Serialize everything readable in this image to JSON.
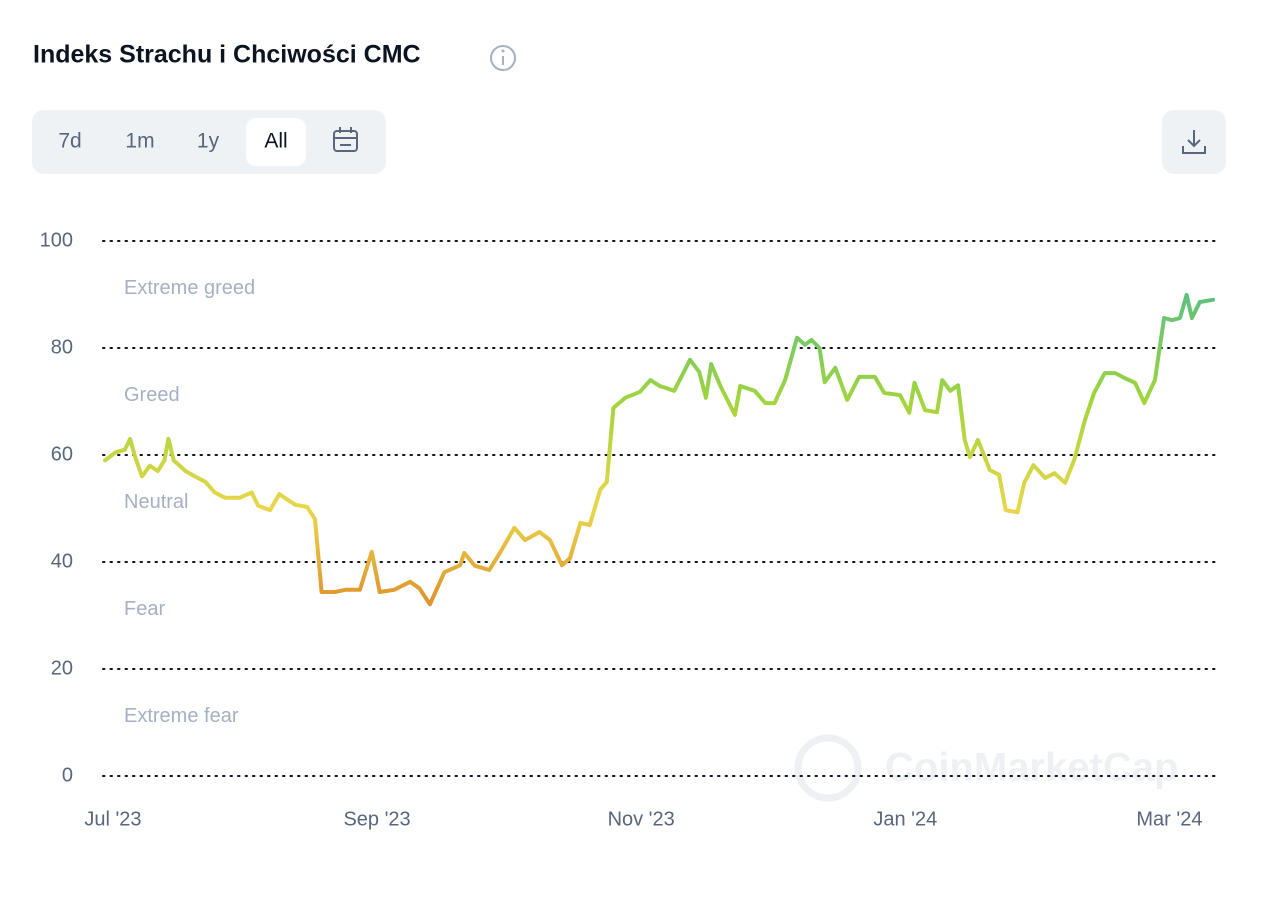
{
  "header": {
    "title": "Indeks Strachu i Chciwości CMC",
    "buttons": [
      "7d",
      "1m",
      "1y",
      "All"
    ],
    "active_button": 3
  },
  "watermark": "CoinMarketCap",
  "chart_data": {
    "type": "line",
    "x": [
      -0.06,
      0.02,
      0.09,
      0.13,
      0.17,
      0.22,
      0.28,
      0.34,
      0.39,
      0.42,
      0.46,
      0.55,
      0.62,
      0.7,
      0.77,
      0.85,
      0.96,
      1.05,
      1.1,
      1.19,
      1.26,
      1.38,
      1.47,
      1.53,
      1.58,
      1.68,
      1.76,
      1.87,
      1.96,
      2.02,
      2.13,
      2.25,
      2.32,
      2.4,
      2.51,
      2.63,
      2.66,
      2.74,
      2.85,
      2.93,
      3.04,
      3.12,
      3.23,
      3.31,
      3.4,
      3.46,
      3.54,
      3.61,
      3.69,
      3.74,
      3.79,
      3.88,
      3.99,
      4.07,
      4.14,
      4.25,
      4.37,
      4.44,
      4.49,
      4.53,
      4.6,
      4.71,
      4.75,
      4.86,
      4.94,
      5.01,
      5.09,
      5.18,
      5.24,
      5.29,
      5.35,
      5.39,
      5.47,
      5.56,
      5.65,
      5.77,
      5.84,
      5.96,
      6.03,
      6.07,
      6.15,
      6.24,
      6.28,
      6.34,
      6.4,
      6.45,
      6.49,
      6.55,
      6.64,
      6.71,
      6.76,
      6.85,
      6.9,
      6.97,
      7.06,
      7.13,
      7.21,
      7.28,
      7.36,
      7.43,
      7.51,
      7.59,
      7.66,
      7.74,
      7.81,
      7.89,
      7.96,
      8.02,
      8.08,
      8.13,
      8.17,
      8.23,
      8.33
    ],
    "values": [
      59,
      60.5,
      61,
      63,
      59.5,
      56,
      58,
      57,
      59,
      63,
      59,
      57,
      56,
      55,
      53,
      52,
      52,
      53,
      50.5,
      49.7,
      52.7,
      50.7,
      50.3,
      48,
      34.4,
      34.4,
      34.8,
      34.8,
      41.9,
      34.4,
      34.8,
      36.3,
      35.1,
      32.1,
      38.1,
      39.4,
      41.7,
      39.3,
      38.5,
      41.7,
      46.4,
      44.1,
      45.6,
      44.1,
      39.4,
      40.7,
      47.3,
      46.9,
      53.5,
      55,
      68.8,
      70.7,
      71.8,
      74,
      72.9,
      72,
      77.8,
      75.5,
      70.7,
      77,
      72.9,
      67.5,
      72.9,
      72,
      69.7,
      69.7,
      74,
      81.9,
      80.6,
      81.5,
      80,
      73.6,
      76.3,
      70.3,
      74.6,
      74.6,
      71.6,
      71.2,
      67.9,
      73.5,
      68.4,
      68,
      74,
      72,
      73,
      62.8,
      59.6,
      62.8,
      57.2,
      56.3,
      49.7,
      49.3,
      54.8,
      58.1,
      55.7,
      56.6,
      54.8,
      59.1,
      66.5,
      71.6,
      75.3,
      75.3,
      74.4,
      73.5,
      69.7,
      74,
      85.6,
      85.2,
      85.6,
      89.9,
      85.6,
      88.6,
      89
    ],
    "xlim": [
      -0.06,
      8.33
    ],
    "xticks": [
      {
        "value": 0,
        "label": "Jul '23"
      },
      {
        "value": 2,
        "label": "Sep '23"
      },
      {
        "value": 4,
        "label": "Nov '23"
      },
      {
        "value": 6,
        "label": "Jan '24"
      },
      {
        "value": 8,
        "label": "Mar '24"
      }
    ],
    "ylim": [
      0,
      100
    ],
    "yticks": [
      0,
      20,
      40,
      60,
      80,
      100
    ],
    "grid": true,
    "zones": [
      {
        "label": "Extreme fear",
        "from": 0,
        "to": 20,
        "color": "#ea3943"
      },
      {
        "label": "Fear",
        "from": 20,
        "to": 40,
        "color": "#dd8a2a"
      },
      {
        "label": "Neutral",
        "from": 40,
        "to": 60,
        "color": "#ead64a"
      },
      {
        "label": "Greed",
        "from": 60,
        "to": 80,
        "color": "#a2d53c"
      },
      {
        "label": "Extreme greed",
        "from": 80,
        "to": 100,
        "color": "#5cc17f"
      }
    ]
  }
}
